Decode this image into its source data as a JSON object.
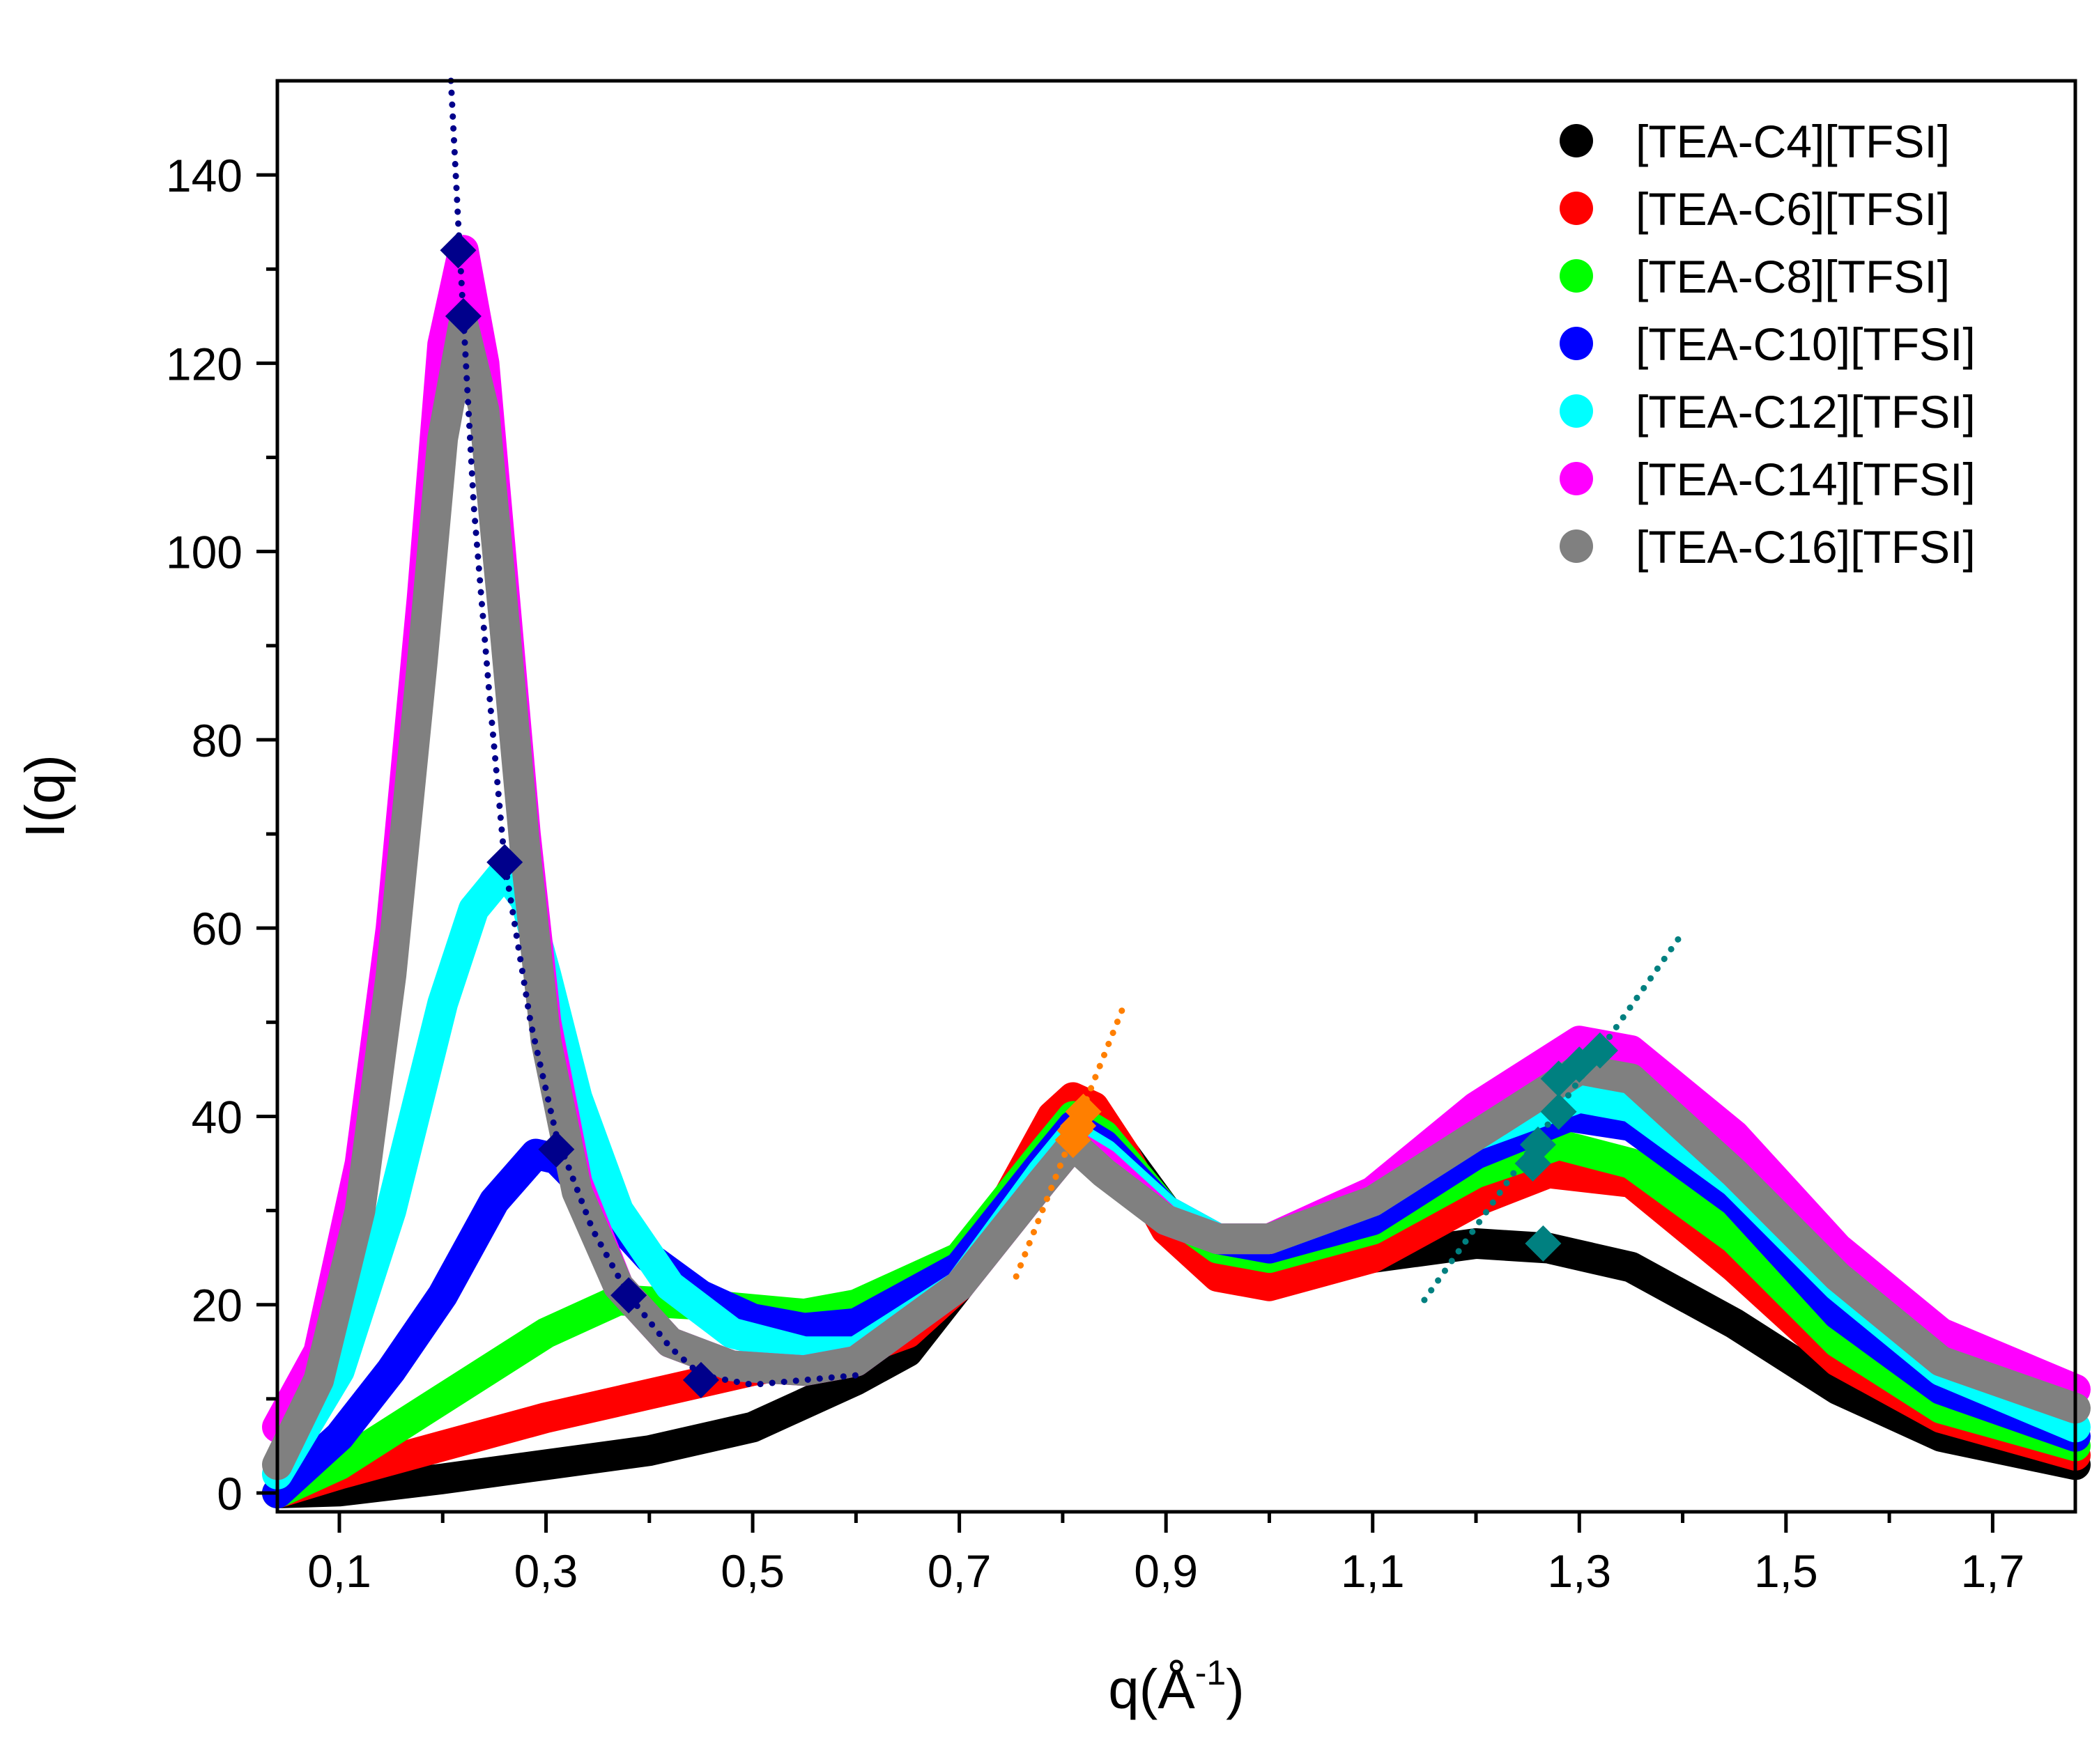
{
  "chart_data": {
    "type": "scatter",
    "title": "",
    "xlabel": "q(Å",
    "xlabel_sup": "-1",
    "xlabel_close": ")",
    "ylabel": "I(q)",
    "xlim": [
      0.04,
      1.78
    ],
    "ylim": [
      -2,
      150
    ],
    "x_ticks": [
      0.1,
      0.3,
      0.5,
      0.7,
      0.9,
      1.1,
      1.3,
      1.5,
      1.7
    ],
    "x_tick_labels": [
      "0,1",
      "0,3",
      "0,5",
      "0,7",
      "0,9",
      "1,1",
      "1,3",
      "1,5",
      "1,7"
    ],
    "x_minor_ticks": [
      0.2,
      0.4,
      0.6,
      0.8,
      1.0,
      1.2,
      1.4,
      1.6
    ],
    "y_ticks": [
      0,
      20,
      40,
      60,
      80,
      100,
      120,
      140
    ],
    "y_tick_labels": [
      "0",
      "20",
      "40",
      "60",
      "80",
      "100",
      "120",
      "140"
    ],
    "y_minor_ticks": [
      10,
      30,
      50,
      70,
      90,
      110,
      130
    ],
    "grid": false,
    "legend_position": "top-right",
    "series": [
      {
        "name": "[TEA-C4][TFSI]",
        "color": "#000000",
        "x": [
          0.04,
          0.1,
          0.2,
          0.3,
          0.4,
          0.5,
          0.6,
          0.65,
          0.7,
          0.75,
          0.78,
          0.81,
          0.83,
          0.86,
          0.9,
          0.95,
          1.0,
          1.1,
          1.2,
          1.27,
          1.35,
          1.45,
          1.55,
          1.65,
          1.78
        ],
        "y": [
          0,
          0.2,
          1.5,
          3,
          4.5,
          7,
          12,
          15,
          22,
          30,
          36,
          41,
          40.5,
          36,
          30,
          26,
          24,
          25,
          26.5,
          26,
          24,
          18,
          11,
          6,
          3
        ]
      },
      {
        "name": "[TEA-C6][TFSI]",
        "color": "#ff0000",
        "x": [
          0.04,
          0.1,
          0.2,
          0.3,
          0.4,
          0.5,
          0.6,
          0.65,
          0.7,
          0.75,
          0.79,
          0.81,
          0.83,
          0.86,
          0.9,
          0.95,
          1.0,
          1.1,
          1.2,
          1.27,
          1.35,
          1.45,
          1.55,
          1.65,
          1.78
        ],
        "y": [
          0,
          2,
          5,
          8,
          10.5,
          13,
          15,
          17,
          22,
          32,
          40,
          42,
          41,
          36,
          28,
          23,
          22,
          25,
          31,
          34,
          33,
          24,
          14,
          8,
          4
        ]
      },
      {
        "name": "[TEA-C8][TFSI]",
        "color": "#00ff00",
        "x": [
          0.04,
          0.1,
          0.2,
          0.3,
          0.37,
          0.45,
          0.5,
          0.55,
          0.6,
          0.7,
          0.78,
          0.81,
          0.84,
          0.9,
          0.95,
          1.0,
          1.1,
          1.2,
          1.28,
          1.35,
          1.45,
          1.55,
          1.65,
          1.78
        ],
        "y": [
          0,
          3,
          10,
          17,
          20.5,
          20,
          19.5,
          19,
          20,
          25,
          36,
          40,
          38,
          30,
          26,
          25,
          28,
          34,
          37,
          35,
          27,
          16,
          9,
          5
        ]
      },
      {
        "name": "[TEA-C10][TFSI]",
        "color": "#0000ff",
        "x": [
          0.04,
          0.1,
          0.15,
          0.2,
          0.25,
          0.29,
          0.31,
          0.35,
          0.4,
          0.45,
          0.5,
          0.55,
          0.6,
          0.7,
          0.78,
          0.81,
          0.84,
          0.9,
          0.95,
          1.0,
          1.1,
          1.2,
          1.29,
          1.35,
          1.45,
          1.55,
          1.65,
          1.78
        ],
        "y": [
          0,
          6,
          13,
          21,
          31,
          36,
          35.5,
          31,
          25,
          21,
          18.5,
          17.5,
          18,
          24,
          35,
          39,
          37,
          30,
          27,
          26,
          29,
          36,
          40,
          39,
          31,
          19,
          11,
          6
        ]
      },
      {
        "name": "[TEA-C12][TFSI]",
        "color": "#00ffff",
        "x": [
          0.04,
          0.1,
          0.15,
          0.2,
          0.23,
          0.26,
          0.28,
          0.3,
          0.33,
          0.37,
          0.42,
          0.48,
          0.55,
          0.6,
          0.7,
          0.78,
          0.81,
          0.84,
          0.9,
          0.95,
          1.0,
          1.1,
          1.2,
          1.3,
          1.35,
          1.45,
          1.55,
          1.65,
          1.78
        ],
        "y": [
          2,
          13,
          30,
          52,
          62,
          66,
          63,
          55,
          42,
          30,
          22,
          17,
          15,
          15,
          22,
          34,
          38,
          36,
          30,
          27,
          27,
          31,
          38,
          42,
          41,
          33,
          22,
          13,
          7
        ]
      },
      {
        "name": "[TEA-C14][TFSI]",
        "color": "#ff00ff",
        "x": [
          0.04,
          0.08,
          0.12,
          0.15,
          0.18,
          0.2,
          0.22,
          0.24,
          0.26,
          0.28,
          0.3,
          0.33,
          0.37,
          0.42,
          0.48,
          0.55,
          0.6,
          0.7,
          0.78,
          0.81,
          0.84,
          0.9,
          0.95,
          1.0,
          1.1,
          1.2,
          1.3,
          1.35,
          1.45,
          1.55,
          1.65,
          1.78
        ],
        "y": [
          7,
          15,
          35,
          60,
          95,
          122,
          132,
          120,
          95,
          70,
          50,
          33,
          22,
          16,
          13.5,
          13,
          14,
          22,
          33,
          37,
          35,
          29,
          27,
          27,
          32,
          41,
          48,
          47,
          38,
          26,
          17,
          11
        ]
      },
      {
        "name": "[TEA-C16][TFSI]",
        "color": "#808080",
        "x": [
          0.04,
          0.08,
          0.12,
          0.15,
          0.18,
          0.2,
          0.22,
          0.24,
          0.26,
          0.28,
          0.3,
          0.33,
          0.37,
          0.42,
          0.48,
          0.55,
          0.6,
          0.7,
          0.78,
          0.81,
          0.84,
          0.9,
          0.95,
          1.0,
          1.1,
          1.2,
          1.3,
          1.35,
          1.45,
          1.55,
          1.65,
          1.78
        ],
        "y": [
          3,
          12,
          30,
          55,
          88,
          112,
          124,
          115,
          92,
          68,
          48,
          32,
          22,
          16,
          13.5,
          13,
          14,
          22,
          33,
          37,
          34,
          29,
          27,
          27,
          31,
          38,
          45,
          44,
          34,
          23,
          14,
          9
        ]
      }
    ],
    "peak_markers": [
      {
        "group": "low-q",
        "color": "#00008b",
        "x": [
          0.215,
          0.22,
          0.26,
          0.31,
          0.38,
          0.45
        ],
        "y": [
          132,
          125,
          67,
          36.5,
          21,
          12
        ]
      },
      {
        "group": "mid-q",
        "color": "#ff7f00",
        "x": [
          0.81,
          0.815,
          0.82,
          0.812
        ],
        "y": [
          37.5,
          39,
          40.5,
          38.5
        ]
      },
      {
        "group": "high-q",
        "color": "#008080",
        "x": [
          1.265,
          1.255,
          1.26,
          1.28,
          1.28,
          1.3,
          1.32
        ],
        "y": [
          26.5,
          35,
          37,
          40.5,
          44,
          45.5,
          47
        ]
      }
    ],
    "trend_lines": [
      {
        "group": "low-q",
        "color": "#00008b",
        "x": [
          0.208,
          0.215,
          0.22,
          0.23,
          0.245,
          0.26,
          0.285,
          0.31,
          0.345,
          0.38,
          0.42,
          0.45,
          0.5,
          0.55,
          0.6
        ],
        "y": [
          150,
          135,
          125,
          105,
          85,
          67,
          50,
          38,
          28,
          21,
          15.5,
          12.5,
          11.5,
          12,
          12.5
        ]
      },
      {
        "group": "mid-q",
        "color": "#ff7f00",
        "x": [
          0.755,
          0.86
        ],
        "y": [
          23,
          52
        ]
      },
      {
        "group": "high-q",
        "color": "#008080",
        "x": [
          1.15,
          1.4
        ],
        "y": [
          20.5,
          59.5
        ]
      }
    ]
  }
}
